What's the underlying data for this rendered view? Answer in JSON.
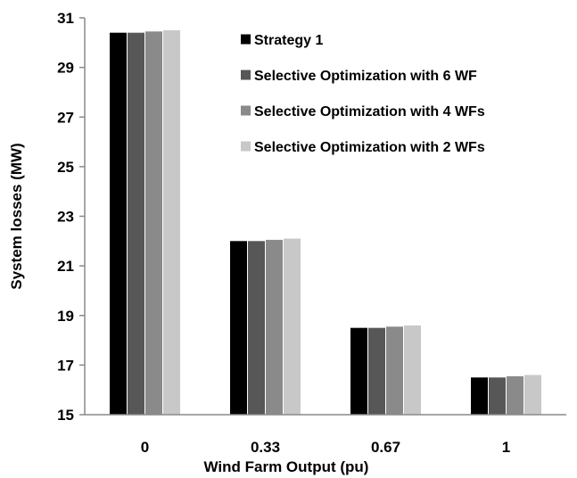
{
  "chart_data": {
    "type": "bar",
    "title": "",
    "xlabel": "Wind Farm Output (pu)",
    "ylabel": "System losses (MW)",
    "categories": [
      "0",
      "0.33",
      "0.67",
      "1"
    ],
    "ylim": [
      15,
      31
    ],
    "yticks": [
      "15",
      "17",
      "19",
      "21",
      "23",
      "25",
      "27",
      "29",
      "31"
    ],
    "grid": false,
    "legend_position": "top-right",
    "series": [
      {
        "name": "Strategy 1",
        "color": "#000000",
        "values": [
          30.4,
          22.0,
          18.5,
          16.5
        ]
      },
      {
        "name": "Selective Optimization with 6 WF",
        "color": "#575757",
        "values": [
          30.4,
          22.0,
          18.5,
          16.5
        ]
      },
      {
        "name": "Selective Optimization with 4 WFs",
        "color": "#8a8a8a",
        "values": [
          30.45,
          22.05,
          18.55,
          16.55
        ]
      },
      {
        "name": "Selective Optimization with 2 WFs",
        "color": "#c8c8c8",
        "values": [
          30.5,
          22.1,
          18.6,
          16.6
        ]
      }
    ]
  }
}
